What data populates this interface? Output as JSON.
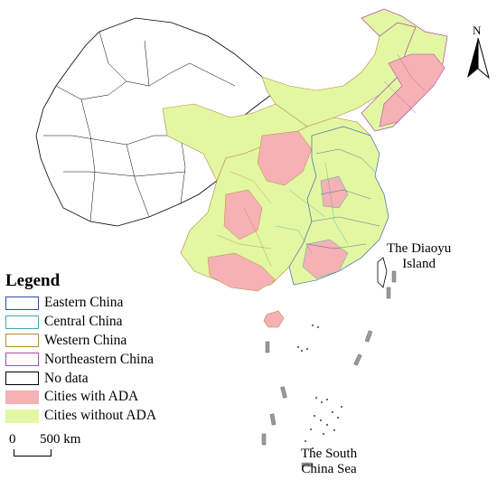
{
  "legend": {
    "title": "Legend",
    "items": [
      {
        "label": "Eastern China",
        "fill": "#ffffff",
        "stroke": "#2c4f9e"
      },
      {
        "label": "Central China",
        "fill": "#ffffff",
        "stroke": "#3fae9c"
      },
      {
        "label": "Western China",
        "fill": "#ffffff",
        "stroke": "#b5893a"
      },
      {
        "label": "Northeastern China",
        "fill": "#ffffff",
        "stroke": "#a64ca6"
      },
      {
        "label": "No data",
        "fill": "#ffffff",
        "stroke": "#000000"
      },
      {
        "label": "Cities with ADA",
        "fill": "#f6b1b5",
        "stroke": "#f6b1b5"
      },
      {
        "label": "Cities without ADA",
        "fill": "#e3f7a3",
        "stroke": "#e3f7a3"
      }
    ]
  },
  "scale_bar": {
    "zero": "0",
    "label": "500 km"
  },
  "north_arrow": {
    "label": "N"
  },
  "annotations": {
    "diaoyu": [
      "The Diaoyu",
      "Island"
    ],
    "south_china_sea": [
      "The South",
      "China Sea"
    ]
  },
  "colors": {
    "boundary": "#000000",
    "with_ada": "#f6b1b5",
    "without_ada": "#e3f7a3",
    "eastern": "#2c4f9e",
    "central": "#3fae9c",
    "western": "#b5893a",
    "northeastern": "#a64ca6"
  }
}
